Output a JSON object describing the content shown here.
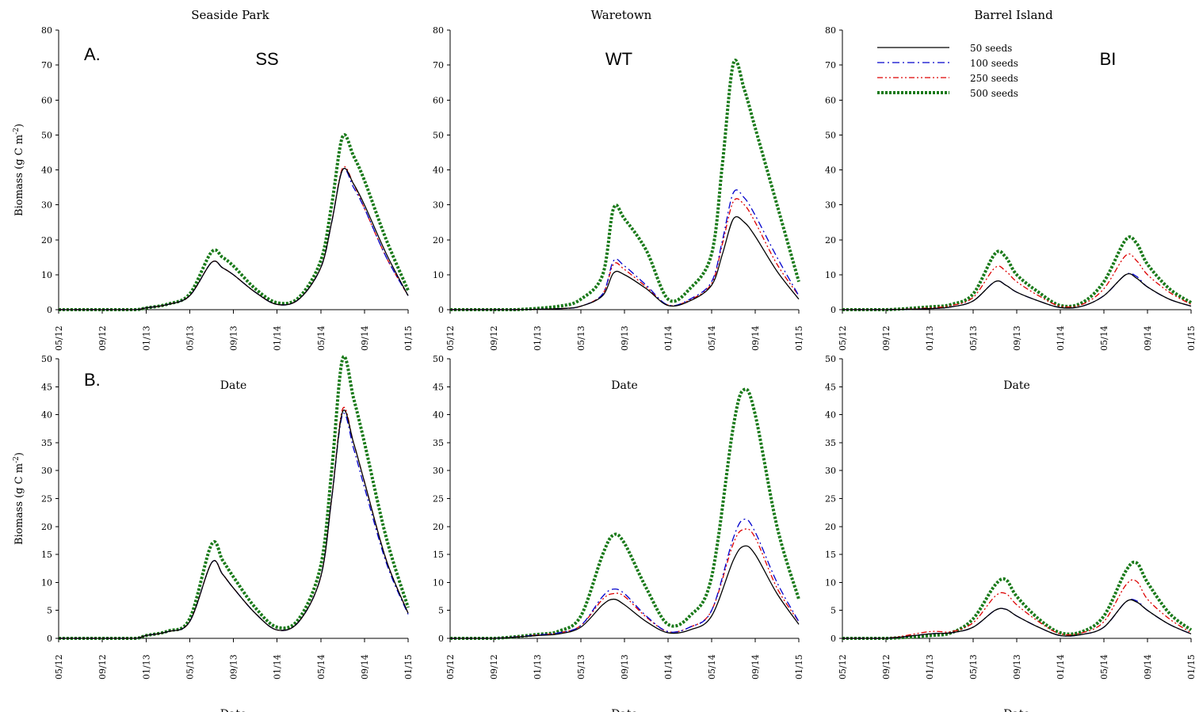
{
  "figure": {
    "xlabel": "Date",
    "ylabel": "Biomass (g C m",
    "ylabel_sup": "-2",
    "ylabel_close": ")",
    "rows": [
      {
        "label": "A.",
        "ylim": [
          0,
          80
        ],
        "yticks": [
          0,
          10,
          20,
          30,
          40,
          50,
          60,
          70,
          80
        ]
      },
      {
        "label": "B.",
        "ylim": [
          0,
          50
        ],
        "yticks": [
          0,
          5,
          10,
          15,
          20,
          25,
          30,
          35,
          40,
          45,
          50
        ]
      }
    ],
    "columns": [
      {
        "title": "Seaside Park",
        "code": "SS"
      },
      {
        "title": "Waretown",
        "code": "WT"
      },
      {
        "title": "Barrel Island",
        "code": "BI"
      }
    ],
    "xticks": [
      "05/12",
      "09/12",
      "01/13",
      "05/13",
      "09/13",
      "01/14",
      "05/14",
      "09/14",
      "01/15"
    ]
  },
  "legend": [
    {
      "label": "50 seeds",
      "color": "#000000",
      "style": "solid"
    },
    {
      "label": "100 seeds",
      "color": "#0000cc",
      "style": "dashdot"
    },
    {
      "label": "250 seeds",
      "color": "#dd0000",
      "style": "dashdotdot"
    },
    {
      "label": "500 seeds",
      "color": "#1a7a1a",
      "style": "dotted-thick"
    }
  ],
  "chart_data": [
    {
      "type": "line",
      "panel": "A-SS",
      "title": "Seaside Park",
      "annotation_code": "SS",
      "row_label": "A.",
      "xlabel": "Date",
      "ylabel": "Biomass (g C m-2)",
      "ylim": [
        0,
        80
      ],
      "grid": false,
      "x": [
        "05/12",
        "09/12",
        "12/12",
        "01/13",
        "03/13",
        "05/13",
        "07/13",
        "08/13",
        "09/13",
        "11/13",
        "01/14",
        "03/14",
        "05/14",
        "06/14",
        "07/14",
        "08/14",
        "09/14",
        "11/14",
        "01/15"
      ],
      "series": [
        {
          "name": "50 seeds",
          "values": [
            0,
            0,
            0,
            0.5,
            1.5,
            4,
            13.5,
            12,
            10,
            5,
            1.5,
            3,
            12,
            25,
            40,
            36,
            30,
            16,
            4
          ]
        },
        {
          "name": "100 seeds",
          "values": [
            0,
            0,
            0,
            0.5,
            1.5,
            4,
            13.5,
            12,
            10,
            5,
            1.5,
            3,
            12,
            25,
            40,
            35,
            29,
            15,
            4
          ]
        },
        {
          "name": "250 seeds",
          "values": [
            0,
            0,
            0,
            0.5,
            1.5,
            4,
            13.5,
            12,
            10,
            5,
            1.5,
            3,
            12,
            25,
            40.5,
            36,
            29,
            15,
            4
          ]
        },
        {
          "name": "500 seeds",
          "values": [
            0,
            0,
            0,
            0.5,
            1.6,
            4.5,
            16.5,
            15,
            12.5,
            6,
            2,
            3.5,
            14,
            30,
            49.5,
            44,
            37,
            20,
            5.5
          ]
        }
      ]
    },
    {
      "type": "line",
      "panel": "A-WT",
      "title": "Waretown",
      "annotation_code": "WT",
      "row_label": "A.",
      "xlabel": "Date",
      "ylabel": "",
      "ylim": [
        0,
        80
      ],
      "grid": false,
      "x": [
        "05/12",
        "09/12",
        "11/12",
        "03/13",
        "05/13",
        "07/13",
        "08/13",
        "09/13",
        "11/13",
        "01/14",
        "03/14",
        "05/14",
        "06/14",
        "07/14",
        "08/14",
        "09/14",
        "11/14",
        "01/15"
      ],
      "series": [
        {
          "name": "50 seeds",
          "values": [
            0,
            0,
            0,
            0.3,
            1,
            4,
            10.5,
            10,
            6,
            1.2,
            2.5,
            7,
            16,
            26,
            25,
            21,
            11,
            3
          ]
        },
        {
          "name": "100 seeds",
          "values": [
            0,
            0,
            0,
            0.3,
            1,
            4.5,
            14,
            12.5,
            7,
            1.3,
            3,
            8,
            20,
            33.5,
            32,
            27,
            15,
            4
          ]
        },
        {
          "name": "250 seeds",
          "values": [
            0,
            0,
            0,
            0.3,
            1,
            4.5,
            13,
            11.5,
            6.5,
            1.3,
            2.8,
            7.5,
            19,
            31,
            30,
            25,
            13,
            4
          ]
        },
        {
          "name": "500 seeds",
          "values": [
            0,
            0,
            0,
            1,
            3,
            10,
            29,
            26,
            17,
            3,
            6,
            16,
            42,
            70.5,
            63,
            52,
            30,
            8
          ]
        }
      ]
    },
    {
      "type": "line",
      "panel": "A-BI",
      "title": "Barrel Island",
      "annotation_code": "BI",
      "row_label": "A.",
      "xlabel": "Date",
      "ylabel": "",
      "ylim": [
        0,
        80
      ],
      "grid": false,
      "x": [
        "05/12",
        "09/12",
        "01/13",
        "03/13",
        "05/13",
        "07/13",
        "08/13",
        "09/13",
        "11/13",
        "01/14",
        "03/14",
        "05/14",
        "07/14",
        "08/14",
        "09/14",
        "11/14",
        "01/15"
      ],
      "series": [
        {
          "name": "50 seeds",
          "values": [
            0,
            0,
            0.3,
            0.8,
            2.5,
            8,
            7,
            5,
            2.5,
            0.6,
            1,
            4,
            10,
            9,
            6.5,
            3,
            1
          ]
        },
        {
          "name": "100 seeds",
          "values": [
            0,
            0,
            0.3,
            0.8,
            2.5,
            8,
            7,
            5,
            2.5,
            0.6,
            1,
            4,
            10,
            9.5,
            6.5,
            3,
            1
          ]
        },
        {
          "name": "250 seeds",
          "values": [
            0,
            0,
            0.5,
            1.2,
            3.5,
            12,
            11,
            8,
            4,
            1,
            1.5,
            6,
            15.5,
            14,
            10,
            5,
            1.5
          ]
        },
        {
          "name": "500 seeds",
          "values": [
            0,
            0,
            0.8,
            1.5,
            4.5,
            16,
            15,
            10,
            5,
            1.2,
            2,
            8,
            20,
            19,
            13,
            6,
            2
          ]
        }
      ]
    },
    {
      "type": "line",
      "panel": "B-SS",
      "title": "",
      "annotation_code": "",
      "row_label": "B.",
      "xlabel": "Date",
      "ylabel": "Biomass (g C m-2)",
      "ylim": [
        0,
        50
      ],
      "grid": false,
      "x": [
        "05/12",
        "09/12",
        "12/12",
        "01/13",
        "03/13",
        "05/13",
        "07/13",
        "08/13",
        "09/13",
        "11/13",
        "01/14",
        "03/14",
        "05/14",
        "06/14",
        "07/14",
        "08/14",
        "09/14",
        "11/14",
        "01/15"
      ],
      "series": [
        {
          "name": "50 seeds",
          "values": [
            0,
            0,
            0,
            0.5,
            1.2,
            3,
            13.5,
            11.5,
            9,
            4.5,
            1.5,
            3,
            11,
            25,
            40.5,
            35,
            28,
            14,
            4.5
          ]
        },
        {
          "name": "100 seeds",
          "values": [
            0,
            0,
            0,
            0.5,
            1.2,
            3,
            13.5,
            11.5,
            9,
            4.5,
            1.5,
            3,
            11,
            25,
            40,
            34,
            27,
            13.5,
            4.3
          ]
        },
        {
          "name": "250 seeds",
          "values": [
            0,
            0,
            0,
            0.5,
            1.2,
            3,
            13.5,
            11.5,
            9,
            4.5,
            1.5,
            3,
            11,
            25,
            41,
            35,
            28,
            14,
            4.5
          ]
        },
        {
          "name": "500 seeds",
          "values": [
            0,
            0,
            0,
            0.5,
            1.3,
            3.5,
            16.8,
            14,
            11,
            5.5,
            2,
            3.5,
            13,
            30,
            50,
            43,
            35,
            18,
            5.5
          ]
        }
      ]
    },
    {
      "type": "line",
      "panel": "B-WT",
      "title": "",
      "annotation_code": "",
      "row_label": "B.",
      "xlabel": "Date",
      "ylabel": "",
      "ylim": [
        0,
        50
      ],
      "grid": false,
      "x": [
        "05/12",
        "09/12",
        "01/13",
        "03/13",
        "05/13",
        "07/13",
        "08/13",
        "09/13",
        "11/13",
        "01/14",
        "03/14",
        "05/14",
        "07/14",
        "08/14",
        "09/14",
        "11/14",
        "01/15"
      ],
      "series": [
        {
          "name": "50 seeds",
          "values": [
            0,
            0,
            0.5,
            0.8,
            2,
            6,
            7,
            6,
            3,
            1,
            1.5,
            4,
            14,
            16.5,
            15,
            8,
            2.5
          ]
        },
        {
          "name": "100 seeds",
          "values": [
            0,
            0,
            0.6,
            1,
            2.3,
            7.5,
            8.8,
            8,
            4,
            1.2,
            2,
            5,
            18,
            21.3,
            19,
            10,
            3
          ]
        },
        {
          "name": "250 seeds",
          "values": [
            0,
            0,
            0.6,
            1,
            2.3,
            7,
            8,
            7.5,
            3.8,
            1.2,
            2,
            5,
            17,
            19.5,
            18,
            9,
            3
          ]
        },
        {
          "name": "500 seeds",
          "values": [
            0,
            0,
            0.7,
            1.3,
            4,
            15,
            18.5,
            17,
            9,
            2.5,
            4,
            11,
            38,
            44.5,
            40,
            20,
            7
          ]
        }
      ]
    },
    {
      "type": "line",
      "panel": "B-BI",
      "title": "",
      "annotation_code": "",
      "row_label": "B.",
      "xlabel": "Date",
      "ylabel": "",
      "ylim": [
        0,
        50
      ],
      "grid": false,
      "x": [
        "05/12",
        "09/12",
        "01/13",
        "03/13",
        "05/13",
        "07/13",
        "08/13",
        "09/13",
        "11/13",
        "01/14",
        "03/14",
        "05/14",
        "07/14",
        "08/14",
        "09/14",
        "11/14",
        "01/15"
      ],
      "series": [
        {
          "name": "50 seeds",
          "values": [
            0,
            0,
            0.8,
            1,
            2,
            5,
            5.2,
            4,
            2,
            0.5,
            0.7,
            2,
            6.5,
            6.5,
            5,
            2.5,
            0.8
          ]
        },
        {
          "name": "100 seeds",
          "values": [
            0,
            0,
            0.8,
            1,
            2,
            5,
            5.2,
            4,
            2,
            0.5,
            0.7,
            2,
            6.5,
            6.7,
            5,
            2.5,
            0.8
          ]
        },
        {
          "name": "250 seeds",
          "values": [
            0,
            0,
            1.2,
            1.2,
            2.8,
            7.5,
            8,
            6,
            3,
            0.8,
            1,
            3,
            9.5,
            10.2,
            7,
            3.5,
            1
          ]
        },
        {
          "name": "500 seeds",
          "values": [
            0,
            0,
            0.5,
            1,
            3.5,
            9.5,
            10.5,
            7.5,
            3.5,
            1,
            1.2,
            4,
            12,
            13.5,
            10,
            4.5,
            1.5
          ]
        }
      ]
    }
  ]
}
